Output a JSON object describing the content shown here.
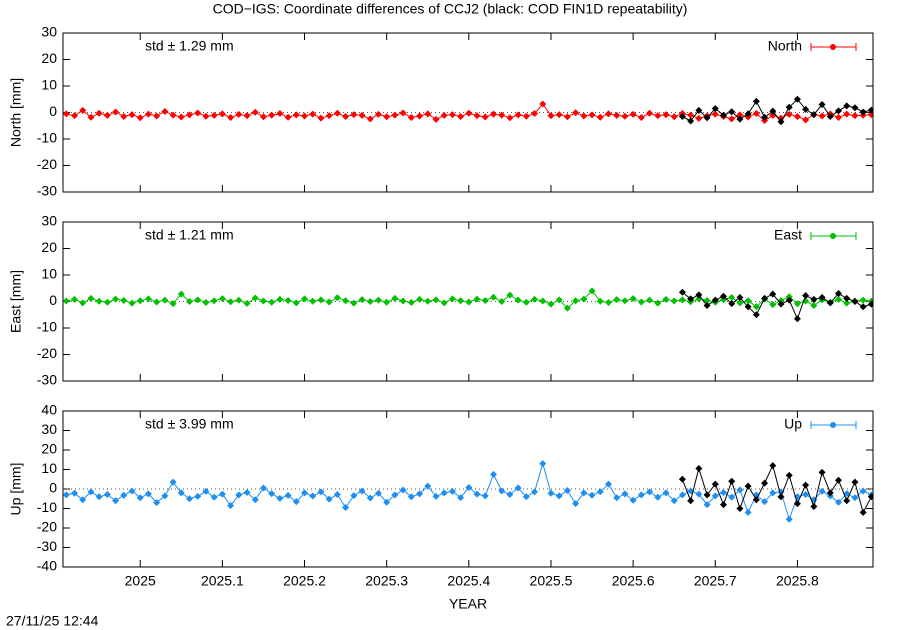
{
  "title": "COD−IGS: Coordinate differences of CCJ2 (black: COD FIN1D repeatability)",
  "timestamp": "27/11/25 12:44",
  "chart_data": [
    {
      "type": "line",
      "ylabel": "North [mm]",
      "annotation": "std ± 1.29 mm",
      "legend": "top-right",
      "xlim": [
        2024.906,
        2025.892
      ],
      "xticks": [
        2025,
        2025.1,
        2025.2,
        2025.3,
        2025.4,
        2025.5,
        2025.6,
        2025.7,
        2025.8
      ],
      "ylim": [
        -30,
        30
      ],
      "yticks": [
        -30,
        -20,
        -10,
        0,
        10,
        20,
        30
      ],
      "series": [
        {
          "name": "North",
          "color": "#ff0000",
          "x": [
            2024.91,
            2024.92,
            2024.93,
            2024.94,
            2024.95,
            2024.96,
            2024.97,
            2024.98,
            2024.99,
            2025.0,
            2025.01,
            2025.02,
            2025.03,
            2025.04,
            2025.05,
            2025.06,
            2025.07,
            2025.08,
            2025.09,
            2025.1,
            2025.11,
            2025.12,
            2025.13,
            2025.14,
            2025.15,
            2025.16,
            2025.17,
            2025.18,
            2025.19,
            2025.2,
            2025.21,
            2025.22,
            2025.23,
            2025.24,
            2025.25,
            2025.26,
            2025.27,
            2025.28,
            2025.29,
            2025.3,
            2025.31,
            2025.32,
            2025.33,
            2025.34,
            2025.35,
            2025.36,
            2025.37,
            2025.38,
            2025.39,
            2025.4,
            2025.41,
            2025.42,
            2025.43,
            2025.44,
            2025.45,
            2025.46,
            2025.47,
            2025.48,
            2025.49,
            2025.5,
            2025.51,
            2025.52,
            2025.53,
            2025.54,
            2025.55,
            2025.56,
            2025.57,
            2025.58,
            2025.59,
            2025.6,
            2025.61,
            2025.62,
            2025.63,
            2025.64,
            2025.65,
            2025.66,
            2025.67,
            2025.68,
            2025.69,
            2025.7,
            2025.71,
            2025.72,
            2025.73,
            2025.74,
            2025.75,
            2025.76,
            2025.77,
            2025.78,
            2025.79,
            2025.8,
            2025.81,
            2025.82,
            2025.83,
            2025.84,
            2025.85,
            2025.86,
            2025.87,
            2025.88,
            2025.89
          ],
          "values": [
            -0.5,
            -1.2,
            0.8,
            -1.8,
            -0.3,
            -1.1,
            0.2,
            -1.5,
            -0.8,
            -2.0,
            -0.6,
            -1.3,
            0.4,
            -1.0,
            -1.7,
            -0.9,
            -0.2,
            -1.4,
            -1.1,
            -0.5,
            -1.9,
            -0.7,
            -1.2,
            0.1,
            -1.6,
            -1.0,
            -0.4,
            -1.8,
            -0.9,
            -1.3,
            -0.6,
            -2.1,
            -1.2,
            -0.3,
            -1.5,
            -0.8,
            -1.1,
            -2.4,
            -0.7,
            -1.6,
            -1.0,
            -0.2,
            -1.9,
            -1.3,
            -0.5,
            -2.6,
            -1.1,
            -0.8,
            -1.5,
            -0.3,
            -1.2,
            -1.7,
            -0.6,
            -1.0,
            -2.0,
            -0.9,
            -1.4,
            -0.4,
            3.2,
            -1.2,
            -0.8,
            -1.6,
            -0.1,
            -1.3,
            -0.9,
            -1.8,
            -0.5,
            -1.1,
            -1.4,
            -0.7,
            -1.9,
            -0.3,
            -1.2,
            -0.8,
            -1.6,
            -0.4,
            -1.0,
            -2.2,
            -1.3,
            -0.6,
            -1.5,
            -2.4,
            -0.9,
            -1.7,
            -0.4,
            -3.0,
            -1.1,
            -2.1,
            -0.7,
            -1.5,
            -2.8,
            -0.8,
            -1.3,
            -0.5,
            -1.9,
            -0.6,
            -1.2,
            -1.0,
            -0.8
          ]
        },
        {
          "color": "#000000",
          "x": [
            2025.66,
            2025.67,
            2025.68,
            2025.69,
            2025.7,
            2025.71,
            2025.72,
            2025.73,
            2025.74,
            2025.75,
            2025.76,
            2025.77,
            2025.78,
            2025.79,
            2025.8,
            2025.81,
            2025.82,
            2025.83,
            2025.84,
            2025.85,
            2025.86,
            2025.87,
            2025.88,
            2025.89
          ],
          "values": [
            -1.5,
            -3.2,
            0.8,
            -2.0,
            1.5,
            -1.0,
            0.3,
            -2.5,
            -0.5,
            4.2,
            -1.8,
            0.5,
            -3.5,
            2.0,
            5.0,
            1.2,
            -0.8,
            3.0,
            -1.5,
            0.6,
            2.5,
            1.8,
            0.2,
            0.9
          ]
        }
      ]
    },
    {
      "type": "line",
      "ylabel": "East [mm]",
      "annotation": "std ± 1.21 mm",
      "legend": "top-right",
      "xlim": [
        2024.906,
        2025.892
      ],
      "xticks": [
        2025,
        2025.1,
        2025.2,
        2025.3,
        2025.4,
        2025.5,
        2025.6,
        2025.7,
        2025.8
      ],
      "ylim": [
        -30,
        30
      ],
      "yticks": [
        -30,
        -20,
        -10,
        0,
        10,
        20,
        30
      ],
      "series": [
        {
          "name": "East",
          "color": "#00c000",
          "x": [
            2024.91,
            2024.92,
            2024.93,
            2024.94,
            2024.95,
            2024.96,
            2024.97,
            2024.98,
            2024.99,
            2025.0,
            2025.01,
            2025.02,
            2025.03,
            2025.04,
            2025.05,
            2025.06,
            2025.07,
            2025.08,
            2025.09,
            2025.1,
            2025.11,
            2025.12,
            2025.13,
            2025.14,
            2025.15,
            2025.16,
            2025.17,
            2025.18,
            2025.19,
            2025.2,
            2025.21,
            2025.22,
            2025.23,
            2025.24,
            2025.25,
            2025.26,
            2025.27,
            2025.28,
            2025.29,
            2025.3,
            2025.31,
            2025.32,
            2025.33,
            2025.34,
            2025.35,
            2025.36,
            2025.37,
            2025.38,
            2025.39,
            2025.4,
            2025.41,
            2025.42,
            2025.43,
            2025.44,
            2025.45,
            2025.46,
            2025.47,
            2025.48,
            2025.49,
            2025.5,
            2025.51,
            2025.52,
            2025.53,
            2025.54,
            2025.55,
            2025.56,
            2025.57,
            2025.58,
            2025.59,
            2025.6,
            2025.61,
            2025.62,
            2025.63,
            2025.64,
            2025.65,
            2025.66,
            2025.67,
            2025.68,
            2025.69,
            2025.7,
            2025.71,
            2025.72,
            2025.73,
            2025.74,
            2025.75,
            2025.76,
            2025.77,
            2025.78,
            2025.79,
            2025.8,
            2025.81,
            2025.82,
            2025.83,
            2025.84,
            2025.85,
            2025.86,
            2025.87,
            2025.88,
            2025.89
          ],
          "values": [
            0.2,
            0.8,
            -0.5,
            1.2,
            0.1,
            -0.3,
            0.9,
            0.4,
            -0.6,
            0.3,
            1.0,
            -0.2,
            0.5,
            -0.8,
            2.8,
            0.0,
            0.6,
            -0.4,
            0.3,
            1.1,
            -0.1,
            0.5,
            -0.7,
            1.3,
            0.2,
            -0.3,
            0.8,
            0.4,
            -0.5,
            1.0,
            0.1,
            0.6,
            -0.2,
            1.4,
            0.3,
            -0.6,
            0.7,
            0.0,
            0.5,
            -0.3,
            1.2,
            0.2,
            -0.4,
            0.8,
            0.1,
            0.6,
            -0.5,
            1.0,
            0.3,
            -0.2,
            0.9,
            0.4,
            1.6,
            0.0,
            2.4,
            0.5,
            -0.3,
            0.8,
            0.2,
            -1.0,
            0.6,
            -2.5,
            0.3,
            0.9,
            4.0,
            0.1,
            -0.4,
            0.7,
            0.3,
            1.1,
            -0.2,
            0.5,
            -0.6,
            0.8,
            0.2,
            0.6,
            -0.1,
            1.0,
            0.4,
            -0.3,
            0.7,
            1.5,
            -0.5,
            0.3,
            -2.0,
            0.9,
            -1.2,
            0.4,
            1.8,
            -0.8,
            0.2,
            -1.5,
            0.6,
            -0.3,
            0.8,
            -0.6,
            0.2,
            0.5,
            0.1
          ]
        },
        {
          "color": "#000000",
          "x": [
            2025.66,
            2025.67,
            2025.68,
            2025.69,
            2025.7,
            2025.71,
            2025.72,
            2025.73,
            2025.74,
            2025.75,
            2025.76,
            2025.77,
            2025.78,
            2025.79,
            2025.8,
            2025.81,
            2025.82,
            2025.83,
            2025.84,
            2025.85,
            2025.86,
            2025.87,
            2025.88,
            2025.89
          ],
          "values": [
            3.5,
            1.0,
            2.5,
            -1.5,
            0.5,
            2.0,
            -0.8,
            1.5,
            -2.0,
            -5.0,
            1.2,
            2.8,
            -1.0,
            0.5,
            -6.5,
            2.2,
            0.8,
            1.5,
            -0.5,
            3.0,
            1.2,
            0.0,
            -2.0,
            -1.0
          ]
        }
      ]
    },
    {
      "type": "line",
      "ylabel": "Up [mm]",
      "xlabel": "YEAR",
      "annotation": "std ± 3.99 mm",
      "legend": "top-right",
      "xlim": [
        2024.906,
        2025.892
      ],
      "xticks": [
        2025,
        2025.1,
        2025.2,
        2025.3,
        2025.4,
        2025.5,
        2025.6,
        2025.7,
        2025.8
      ],
      "ylim": [
        -40,
        40
      ],
      "yticks": [
        -40,
        -30,
        -20,
        -10,
        0,
        10,
        20,
        30,
        40
      ],
      "series": [
        {
          "name": "Up",
          "color": "#1e8ff0",
          "x": [
            2024.91,
            2024.92,
            2024.93,
            2024.94,
            2024.95,
            2024.96,
            2024.97,
            2024.98,
            2024.99,
            2025.0,
            2025.01,
            2025.02,
            2025.03,
            2025.04,
            2025.05,
            2025.06,
            2025.07,
            2025.08,
            2025.09,
            2025.1,
            2025.11,
            2025.12,
            2025.13,
            2025.14,
            2025.15,
            2025.16,
            2025.17,
            2025.18,
            2025.19,
            2025.2,
            2025.21,
            2025.22,
            2025.23,
            2025.24,
            2025.25,
            2025.26,
            2025.27,
            2025.28,
            2025.29,
            2025.3,
            2025.31,
            2025.32,
            2025.33,
            2025.34,
            2025.35,
            2025.36,
            2025.37,
            2025.38,
            2025.39,
            2025.4,
            2025.41,
            2025.42,
            2025.43,
            2025.44,
            2025.45,
            2025.46,
            2025.47,
            2025.48,
            2025.49,
            2025.5,
            2025.51,
            2025.52,
            2025.53,
            2025.54,
            2025.55,
            2025.56,
            2025.57,
            2025.58,
            2025.59,
            2025.6,
            2025.61,
            2025.62,
            2025.63,
            2025.64,
            2025.65,
            2025.66,
            2025.67,
            2025.68,
            2025.69,
            2025.7,
            2025.71,
            2025.72,
            2025.73,
            2025.74,
            2025.75,
            2025.76,
            2025.77,
            2025.78,
            2025.79,
            2025.8,
            2025.81,
            2025.82,
            2025.83,
            2025.84,
            2025.85,
            2025.86,
            2025.87,
            2025.88,
            2025.89
          ],
          "values": [
            -3.0,
            -2.2,
            -5.5,
            -1.5,
            -4.0,
            -2.8,
            -6.0,
            -3.2,
            -1.0,
            -4.5,
            -2.5,
            -7.0,
            -3.5,
            3.5,
            -2.0,
            -5.0,
            -3.8,
            -1.2,
            -4.2,
            -2.6,
            -8.5,
            -3.0,
            -1.8,
            -5.5,
            0.5,
            -2.4,
            -4.8,
            -3.3,
            -6.5,
            -2.0,
            -3.6,
            -1.5,
            -5.2,
            -2.8,
            -9.5,
            -3.4,
            -1.0,
            -4.6,
            -2.2,
            -6.8,
            -3.0,
            -0.5,
            -4.0,
            -2.5,
            1.5,
            -3.8,
            -2.0,
            -1.2,
            -4.4,
            0.8,
            -2.6,
            -3.5,
            7.5,
            -1.0,
            -2.8,
            0.5,
            -4.0,
            -1.5,
            13.0,
            -2.2,
            -3.5,
            -0.8,
            -7.5,
            -2.0,
            -3.2,
            -1.4,
            2.5,
            -4.5,
            -2.5,
            -5.8,
            -3.0,
            -1.5,
            -4.2,
            -2.0,
            -6.0,
            -3.0,
            -1.0,
            -2.6,
            -8.0,
            -3.5,
            -1.8,
            -4.2,
            -0.5,
            -12.0,
            -3.0,
            -6.5,
            -2.0,
            -1.5,
            -15.5,
            -4.0,
            -2.8,
            -5.5,
            -1.2,
            -3.6,
            -6.8,
            -2.4,
            -4.5,
            -1.0,
            -3.0
          ]
        },
        {
          "color": "#000000",
          "x": [
            2025.66,
            2025.67,
            2025.68,
            2025.69,
            2025.7,
            2025.71,
            2025.72,
            2025.73,
            2025.74,
            2025.75,
            2025.76,
            2025.77,
            2025.78,
            2025.79,
            2025.8,
            2025.81,
            2025.82,
            2025.83,
            2025.84,
            2025.85,
            2025.86,
            2025.87,
            2025.88,
            2025.89
          ],
          "values": [
            5.0,
            -6.0,
            10.5,
            -3.0,
            2.5,
            -8.0,
            4.0,
            -10.0,
            1.5,
            -5.5,
            3.0,
            12.0,
            -4.0,
            7.0,
            -7.5,
            2.0,
            -9.0,
            8.5,
            -2.0,
            4.5,
            -6.0,
            3.5,
            -12.0,
            -4.0
          ]
        }
      ]
    }
  ]
}
